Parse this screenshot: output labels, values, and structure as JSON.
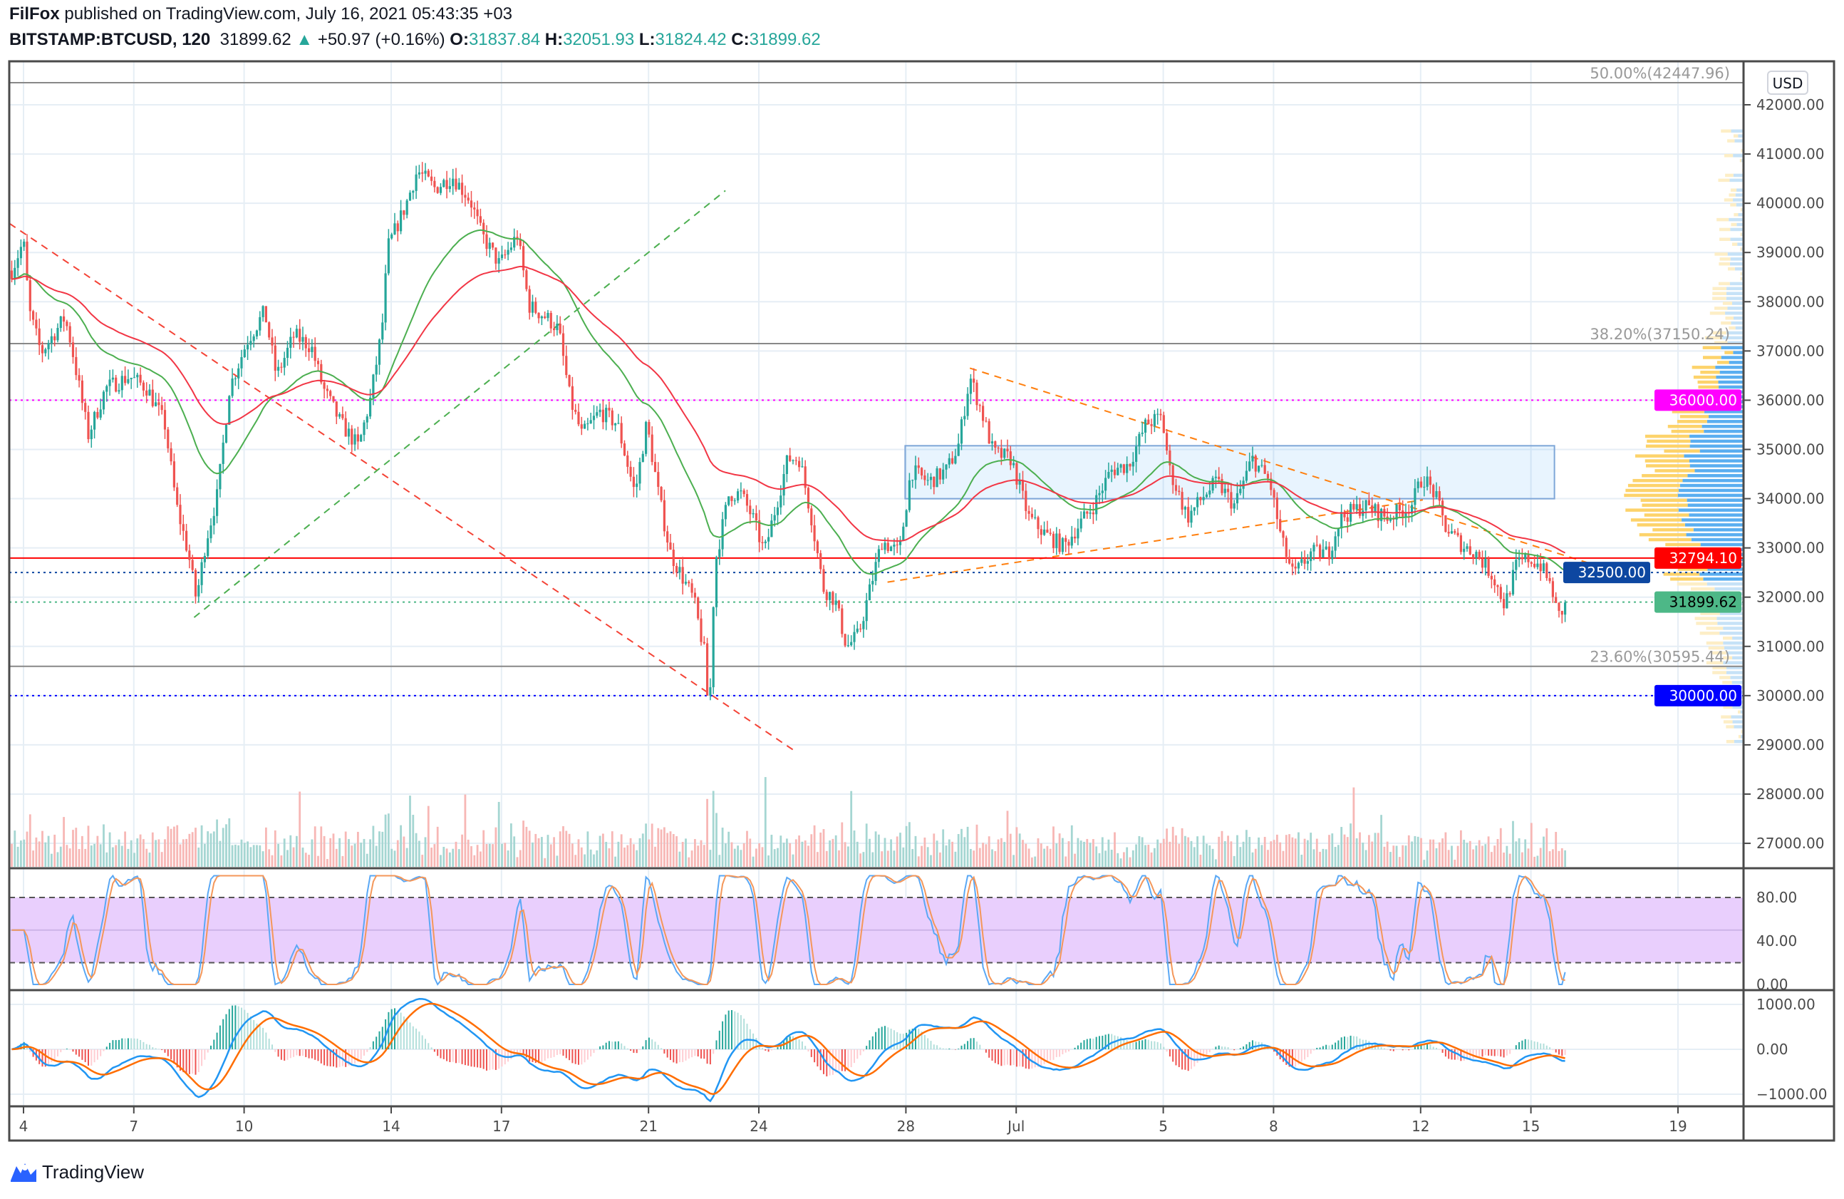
{
  "header": {
    "author": "FilFox",
    "published": "published on TradingView.com, July 16, 2021 05:43:35 +03",
    "symbol": "BITSTAMP:BTCUSD, 120",
    "last": "31899.62",
    "change": "+50.97 (+0.16%)",
    "o_label": "O:",
    "o": "31837.84",
    "h_label": "H:",
    "h": "32051.93",
    "l_label": "L:",
    "l": "31824.42",
    "c_label": "C:",
    "c": "31899.62"
  },
  "currency": "USD",
  "logo_text": "TradingView",
  "colors": {
    "up": "#26a69a",
    "down": "#ef5350",
    "ma_fast": "#4caf50",
    "ma_slow": "#f23645",
    "magenta": "#ff00ff",
    "blue": "#0000ff",
    "navy": "#0d47a1",
    "last": "#4db887"
  },
  "chart_data": {
    "type": "candlestick",
    "title": "BITSTAMP:BTCUSD, 120",
    "x_unit": "days since June 4, 2021",
    "ylim": [
      26500,
      42700
    ],
    "price_ticks": [
      27000,
      28000,
      29000,
      30000,
      31000,
      32000,
      33000,
      34000,
      35000,
      36000,
      37000,
      38000,
      39000,
      40000,
      41000,
      42000
    ],
    "time_ticks": [
      {
        "label": "4",
        "day": 0
      },
      {
        "label": "7",
        "day": 3
      },
      {
        "label": "10",
        "day": 6
      },
      {
        "label": "14",
        "day": 10
      },
      {
        "label": "17",
        "day": 13
      },
      {
        "label": "21",
        "day": 17
      },
      {
        "label": "24",
        "day": 20
      },
      {
        "label": "28",
        "day": 24
      },
      {
        "label": "Jul",
        "day": 27
      },
      {
        "label": "5",
        "day": 31
      },
      {
        "label": "8",
        "day": 34
      },
      {
        "label": "12",
        "day": 38
      },
      {
        "label": "15",
        "day": 41
      },
      {
        "label": "19",
        "day": 45
      }
    ],
    "price_path": [
      [
        -0.32,
        38633
      ],
      [
        0,
        39230
      ],
      [
        0.16,
        37797
      ],
      [
        0.48,
        36961
      ],
      [
        1.12,
        37678
      ],
      [
        1.28,
        37200
      ],
      [
        1.76,
        35290
      ],
      [
        2.24,
        36245
      ],
      [
        2.88,
        36484
      ],
      [
        3.36,
        36245
      ],
      [
        3.84,
        35528
      ],
      [
        4.16,
        33857
      ],
      [
        4.48,
        32902
      ],
      [
        4.7,
        31946
      ],
      [
        4.96,
        33140
      ],
      [
        5.28,
        34096
      ],
      [
        5.6,
        36245
      ],
      [
        6.08,
        37200
      ],
      [
        6.56,
        37797
      ],
      [
        6.88,
        36484
      ],
      [
        7.36,
        37320
      ],
      [
        7.83,
        37081
      ],
      [
        8.15,
        36245
      ],
      [
        8.63,
        35528
      ],
      [
        9.11,
        35051
      ],
      [
        9.43,
        36006
      ],
      [
        9.75,
        37439
      ],
      [
        9.91,
        39110
      ],
      [
        10.39,
        39946
      ],
      [
        10.71,
        40663
      ],
      [
        11.19,
        40305
      ],
      [
        11.67,
        40543
      ],
      [
        12.15,
        40066
      ],
      [
        12.47,
        39349
      ],
      [
        12.95,
        38752
      ],
      [
        13.43,
        39349
      ],
      [
        13.75,
        37917
      ],
      [
        14.23,
        37678
      ],
      [
        14.55,
        37439
      ],
      [
        14.87,
        36006
      ],
      [
        15.19,
        35290
      ],
      [
        15.67,
        35767
      ],
      [
        16.15,
        35528
      ],
      [
        16.63,
        34096
      ],
      [
        16.95,
        35528
      ],
      [
        17.27,
        34096
      ],
      [
        17.59,
        32902
      ],
      [
        17.91,
        32424
      ],
      [
        18.23,
        31946
      ],
      [
        18.55,
        30752
      ],
      [
        18.64,
        29320
      ],
      [
        18.8,
        32663
      ],
      [
        19.19,
        34096
      ],
      [
        19.51,
        34096
      ],
      [
        19.83,
        33618
      ],
      [
        20.15,
        32902
      ],
      [
        20.47,
        33857
      ],
      [
        20.79,
        34812
      ],
      [
        21.11,
        34812
      ],
      [
        21.43,
        33618
      ],
      [
        21.75,
        32185
      ],
      [
        22.07,
        31946
      ],
      [
        22.39,
        30991
      ],
      [
        22.71,
        31230
      ],
      [
        23.03,
        32185
      ],
      [
        23.35,
        33140
      ],
      [
        23.82,
        32902
      ],
      [
        24.14,
        34573
      ],
      [
        24.62,
        34335
      ],
      [
        25.1,
        34573
      ],
      [
        25.42,
        35051
      ],
      [
        25.74,
        36484
      ],
      [
        26.06,
        35767
      ],
      [
        26.38,
        34932
      ],
      [
        26.86,
        34812
      ],
      [
        27.34,
        33618
      ],
      [
        27.82,
        33260
      ],
      [
        28.3,
        33021
      ],
      [
        28.62,
        33379
      ],
      [
        29.1,
        33857
      ],
      [
        29.58,
        34573
      ],
      [
        30.06,
        34693
      ],
      [
        30.54,
        35528
      ],
      [
        30.96,
        35648
      ],
      [
        31.18,
        34573
      ],
      [
        31.66,
        33618
      ],
      [
        32.14,
        34096
      ],
      [
        32.46,
        34335
      ],
      [
        32.94,
        33857
      ],
      [
        33.42,
        34812
      ],
      [
        33.9,
        34335
      ],
      [
        34.22,
        33140
      ],
      [
        34.54,
        32424
      ],
      [
        35.02,
        32902
      ],
      [
        35.5,
        32902
      ],
      [
        35.82,
        33618
      ],
      [
        36.46,
        33857
      ],
      [
        37.1,
        33618
      ],
      [
        37.74,
        33857
      ],
      [
        38.06,
        34454
      ],
      [
        38.38,
        34096
      ],
      [
        38.7,
        33379
      ],
      [
        39.18,
        33021
      ],
      [
        39.5,
        32902
      ],
      [
        39.97,
        32424
      ],
      [
        40.29,
        31827
      ],
      [
        40.61,
        32663
      ],
      [
        40.93,
        32782
      ],
      [
        41.25,
        32663
      ],
      [
        41.57,
        32185
      ],
      [
        41.73,
        31588
      ],
      [
        42.0,
        31899.62
      ]
    ],
    "indicators": {
      "moving_averages": [
        "fast (green)",
        "slow (red)"
      ],
      "stoch_rsi": {
        "ticks": [
          "80.00",
          "40.00",
          "0.00"
        ],
        "bands": [
          20,
          80
        ]
      },
      "macd": {
        "ticks": [
          "1000.00",
          "0.00",
          "−1000.00"
        ]
      }
    },
    "fib_levels": [
      {
        "label": "50.00%(42447.96)",
        "price": 42447.96
      },
      {
        "label": "38.20%(37150.24)",
        "price": 37150.24
      },
      {
        "label": "23.60%(30595.44)",
        "price": 30595.44
      }
    ],
    "horizontal_lines": [
      {
        "label": "36000.00",
        "price": 36000,
        "style": "dotted",
        "color": "#ff00ff",
        "badge": "#ff00ff",
        "text": "#ffffff"
      },
      {
        "label": "32794.10",
        "price": 32794.1,
        "style": "solid",
        "color": "#ff0000",
        "badge": "#ff0000",
        "text": "#ffffff"
      },
      {
        "label": "32500.00",
        "price": 32500,
        "style": "dotted",
        "color": "#0d47a1",
        "badge": "#0d47a1",
        "text": "#ffffff"
      },
      {
        "label": "31899.62",
        "price": 31899.62,
        "style": "dotted",
        "color": "#4db887",
        "badge": "#4db887",
        "text": "#000000"
      },
      {
        "label": "30000.00",
        "price": 30000,
        "style": "dotted",
        "color": "#0000ff",
        "badge": "#0000ff",
        "text": "#ffffff"
      }
    ],
    "trend_lines": [
      {
        "from": [
          -0.38,
          39588
        ],
        "to": [
          20.95,
          28890
        ],
        "color": "#f44336"
      },
      {
        "from": [
          4.64,
          31588
        ],
        "to": [
          19.09,
          40257
        ],
        "color": "#4caf50"
      },
      {
        "from": [
          25.74,
          36651
        ],
        "to": [
          43.0,
          32591
        ],
        "color": "#ff7f0e"
      },
      {
        "from": [
          23.5,
          32305
        ],
        "to": [
          38.06,
          33976
        ],
        "color": "#ff7f0e"
      }
    ],
    "range_box": {
      "from": [
        23.98,
        35075
      ],
      "to": [
        41.64,
        33999
      ]
    }
  }
}
